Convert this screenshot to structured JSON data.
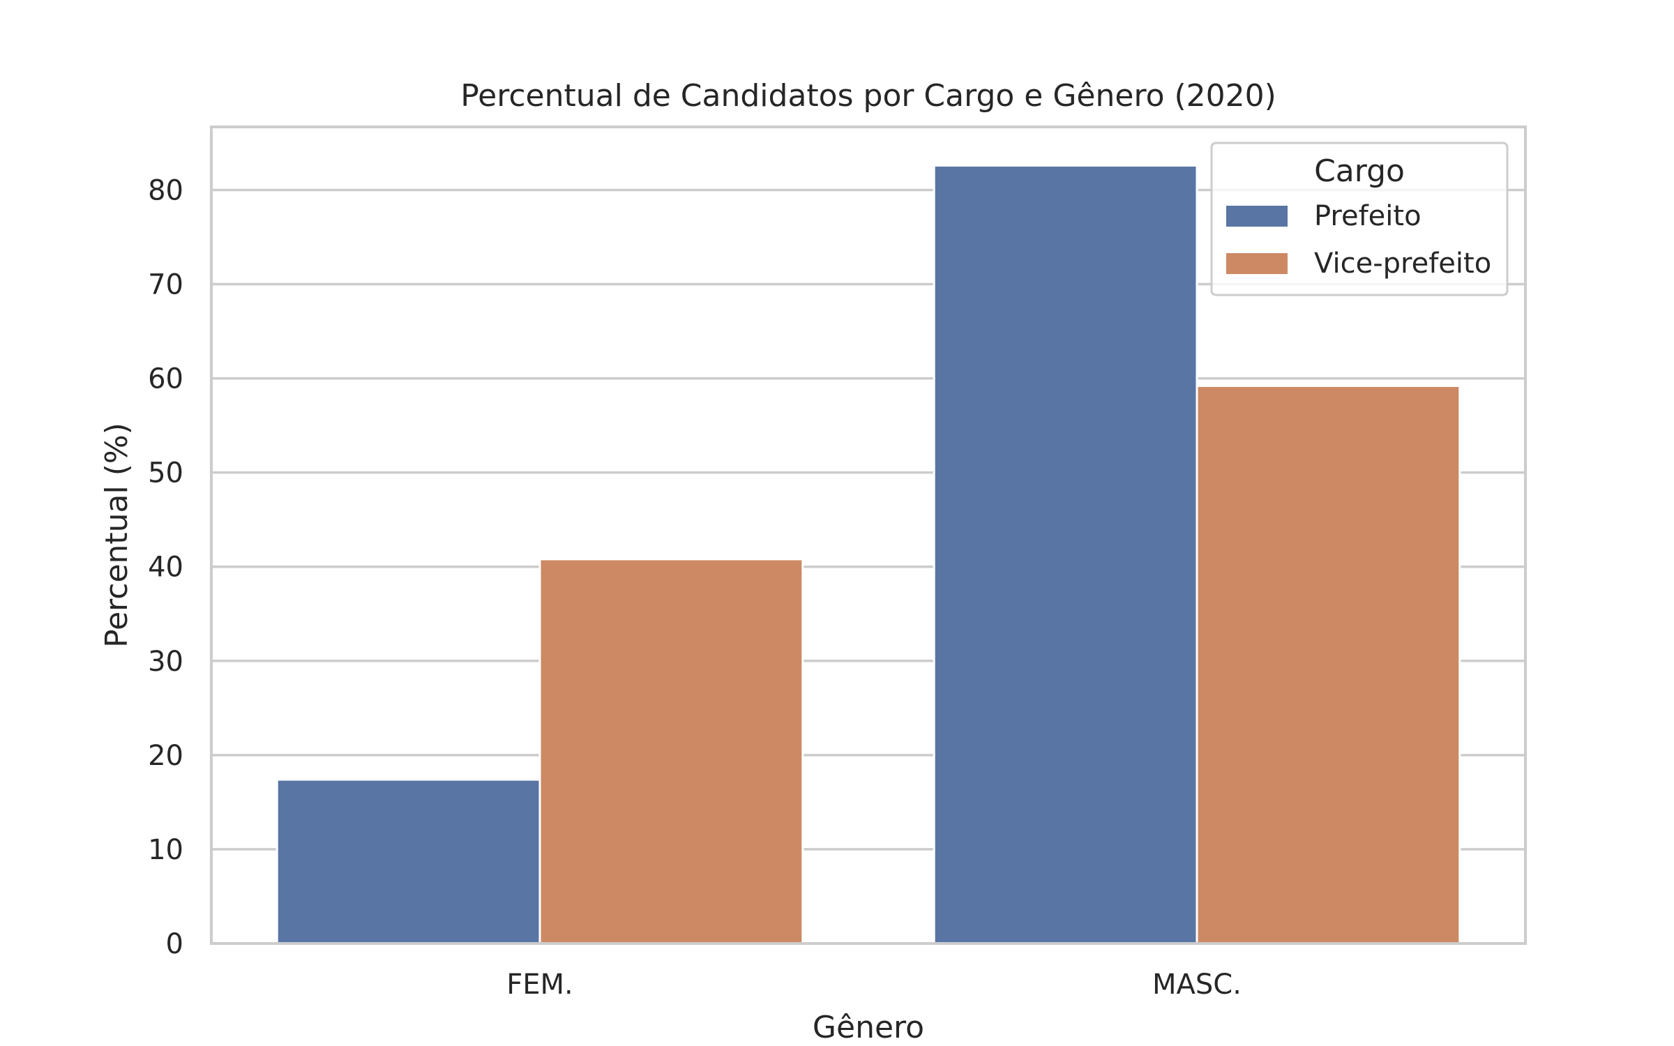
{
  "chart_data": {
    "type": "bar",
    "title": "Percentual de Candidatos por Cargo e Gênero (2020)",
    "xlabel": "Gênero",
    "ylabel": "Percentual (%)",
    "categories": [
      "FEM.",
      "MASC."
    ],
    "series": [
      {
        "name": "Prefeito",
        "values": [
          17.4,
          82.6
        ],
        "color": "#5975a4"
      },
      {
        "name": "Vice-prefeito",
        "values": [
          40.8,
          59.2
        ],
        "color": "#cc8963"
      }
    ],
    "ylim": [
      0,
      86.7
    ],
    "yticks": [
      0,
      10,
      20,
      30,
      40,
      50,
      60,
      70,
      80
    ],
    "grid": true,
    "legend": {
      "title": "Cargo",
      "placement": "top-right"
    }
  }
}
